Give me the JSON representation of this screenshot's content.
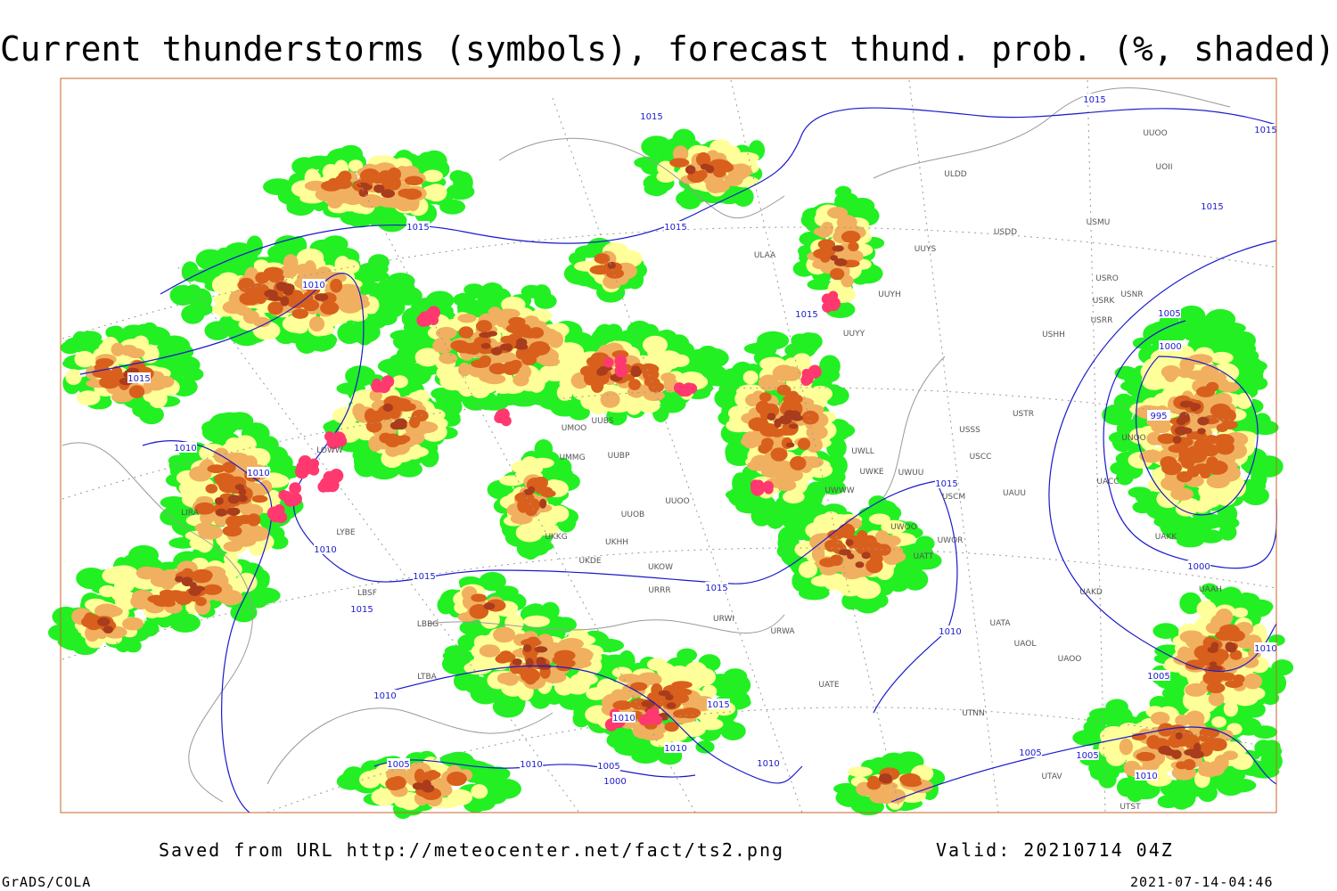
{
  "header": {
    "title": "Current thunderstorms (symbols), forecast thund. prob. (%, shaded)"
  },
  "map": {
    "isobar_labels": [
      "1015",
      "1015",
      "1015",
      "1015",
      "1015",
      "1015",
      "1015",
      "1015",
      "1015",
      "1015",
      "1015",
      "1015",
      "1015",
      "1010",
      "1010",
      "1010",
      "1010",
      "1010",
      "1010",
      "1010",
      "1010",
      "1010",
      "1010",
      "1010",
      "1010",
      "1005",
      "1005",
      "1005",
      "1005",
      "1005",
      "1005",
      "1000",
      "1000",
      "1000",
      "995"
    ],
    "stations": [
      "ULDD",
      "USDD",
      "USMU",
      "UUYS",
      "ULAA",
      "UUYH",
      "UUYY",
      "USRO",
      "USRK",
      "USNR",
      "USRR",
      "USHH",
      "UUOO",
      "UOII",
      "USSS",
      "USTR",
      "USCC",
      "USCM",
      "UAUU",
      "UWOO",
      "UWOR",
      "UATT",
      "UAKD",
      "UATA",
      "UAOL",
      "UAOO",
      "UTNN",
      "UACC",
      "UAKK",
      "UNOO",
      "UUBP",
      "UUOB",
      "UUOO",
      "UKHH",
      "UKOW",
      "UKDE",
      "URRR",
      "URWI",
      "URWA",
      "UATE",
      "UWWW",
      "UWKE",
      "UWUU",
      "UWLL",
      "UKKG",
      "UMMG",
      "UMOO",
      "UUBS",
      "LIRA",
      "LYBE",
      "LBSF",
      "LBBG",
      "LTBA",
      "LOWW",
      "UAAH",
      "UTAV",
      "UTST"
    ]
  },
  "footer": {
    "source": "Saved from URL http://meteocenter.net/fact/ts2.png",
    "valid": "Valid: 20210714 04Z",
    "software": "GrADS/COLA",
    "timestamp": "2021-07-14-04:46"
  }
}
